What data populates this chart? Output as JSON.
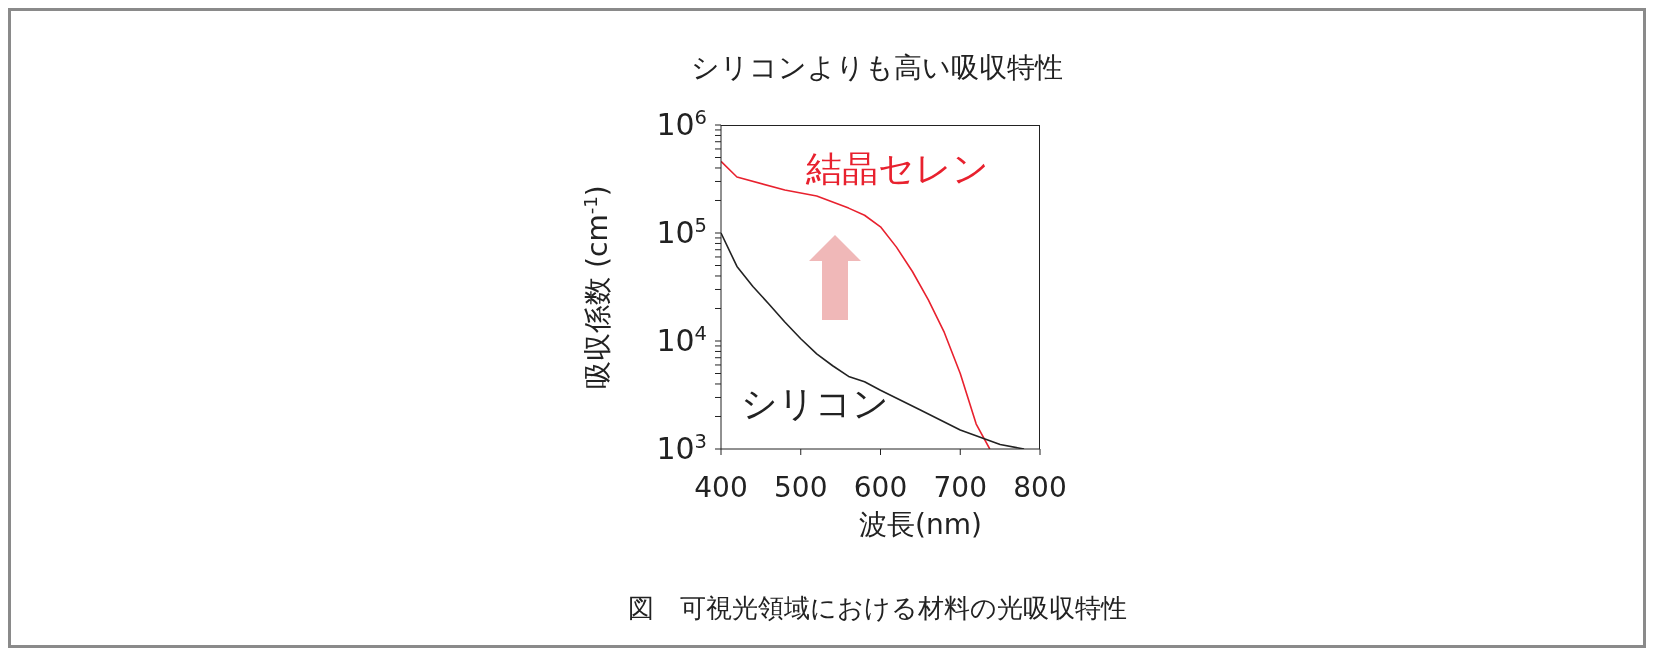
{
  "chart_data": {
    "type": "line",
    "title": "シリコンよりも高い吸収特性",
    "xlabel": "波長(nm)",
    "ylabel": "吸収係数 (cm$^{-1}$)",
    "annotations": [
      "図　可視光領域における材料の光吸収特性"
    ],
    "log": "y",
    "marker": "none",
    "line_style": "solid",
    "xlim": [
      400,
      800
    ],
    "xticks": [
      400,
      500,
      600,
      700,
      800
    ],
    "ylim": [
      1000,
      1000000
    ],
    "yticks": [
      {
        "value": 1000,
        "label": "10$^{3}$"
      },
      {
        "value": 2000,
        "label": null
      },
      {
        "value": 3000,
        "label": null
      },
      {
        "value": 4000,
        "label": null
      },
      {
        "value": 5000,
        "label": null
      },
      {
        "value": 6000,
        "label": null
      },
      {
        "value": 7000,
        "label": null
      },
      {
        "value": 8000,
        "label": null
      },
      {
        "value": 9000,
        "label": null
      },
      {
        "value": 10000,
        "label": "10$^{4}$"
      },
      {
        "value": 20000,
        "label": null
      },
      {
        "value": 30000,
        "label": null
      },
      {
        "value": 40000,
        "label": null
      },
      {
        "value": 50000,
        "label": null
      },
      {
        "value": 60000,
        "label": null
      },
      {
        "value": 70000,
        "label": null
      },
      {
        "value": 80000,
        "label": null
      },
      {
        "value": 90000,
        "label": null
      },
      {
        "value": 100000,
        "label": "10$^{5}$"
      },
      {
        "value": 200000,
        "label": null
      },
      {
        "value": 300000,
        "label": null
      },
      {
        "value": 400000,
        "label": null
      },
      {
        "value": 500000,
        "label": null
      },
      {
        "value": 600000,
        "label": null
      },
      {
        "value": 700000,
        "label": null
      },
      {
        "value": 800000,
        "label": null
      },
      {
        "value": 900000,
        "label": null
      },
      {
        "value": 1000000,
        "label": "10$^{6}$"
      }
    ],
    "series": [
      {
        "name": "結晶セレン",
        "color": "#e8212e",
        "x": [
          400,
          420,
          480,
          520,
          560,
          580,
          600,
          620,
          640,
          660,
          680,
          700,
          720,
          737
        ],
        "values": [
          460000,
          330000,
          250000,
          220000,
          170000,
          146000,
          114000,
          74000,
          44000,
          24000,
          12000,
          5000,
          1700,
          1000
        ]
      },
      {
        "name": "シリコン",
        "color": "#222222",
        "x": [
          400,
          420,
          440,
          460,
          480,
          500,
          520,
          540,
          560,
          580,
          600,
          650,
          700,
          750,
          780
        ],
        "values": [
          100000,
          49000,
          32000,
          22000,
          15000,
          10500,
          7600,
          5900,
          4700,
          4200,
          3500,
          2300,
          1500,
          1100,
          1000
        ]
      }
    ]
  }
}
